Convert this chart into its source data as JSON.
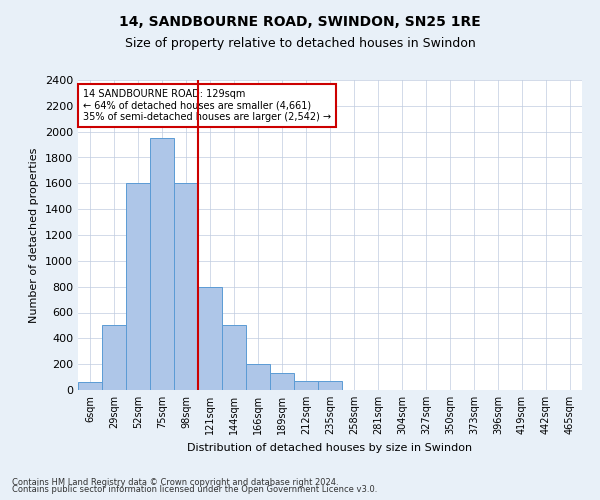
{
  "title": "14, SANDBOURNE ROAD, SWINDON, SN25 1RE",
  "subtitle": "Size of property relative to detached houses in Swindon",
  "xlabel": "Distribution of detached houses by size in Swindon",
  "ylabel": "Number of detached properties",
  "footnote1": "Contains HM Land Registry data © Crown copyright and database right 2024.",
  "footnote2": "Contains public sector information licensed under the Open Government Licence v3.0.",
  "annotation_line1": "14 SANDBOURNE ROAD: 129sqm",
  "annotation_line2": "← 64% of detached houses are smaller (4,661)",
  "annotation_line3": "35% of semi-detached houses are larger (2,542) →",
  "bar_labels": [
    "6sqm",
    "29sqm",
    "52sqm",
    "75sqm",
    "98sqm",
    "121sqm",
    "144sqm",
    "166sqm",
    "189sqm",
    "212sqm",
    "235sqm",
    "258sqm",
    "281sqm",
    "304sqm",
    "327sqm",
    "350sqm",
    "373sqm",
    "396sqm",
    "419sqm",
    "442sqm",
    "465sqm"
  ],
  "bar_values": [
    60,
    500,
    1600,
    1950,
    1600,
    800,
    500,
    200,
    130,
    70,
    70,
    0,
    0,
    0,
    0,
    0,
    0,
    0,
    0,
    0,
    0
  ],
  "bar_color": "#aec6e8",
  "bar_edgecolor": "#5b9bd5",
  "vline_index": 4,
  "vline_color": "#cc0000",
  "ylim": [
    0,
    2400
  ],
  "yticks": [
    0,
    200,
    400,
    600,
    800,
    1000,
    1200,
    1400,
    1600,
    1800,
    2000,
    2200,
    2400
  ],
  "bg_color": "#e8f0f8",
  "plot_bg_color": "#ffffff",
  "grid_color": "#c0cce0",
  "annotation_box_color": "#cc0000",
  "title_fontsize": 10,
  "subtitle_fontsize": 9,
  "ylabel_fontsize": 8,
  "xlabel_fontsize": 8,
  "tick_fontsize": 8,
  "xtick_fontsize": 7,
  "annotation_fontsize": 7,
  "footnote_fontsize": 6
}
